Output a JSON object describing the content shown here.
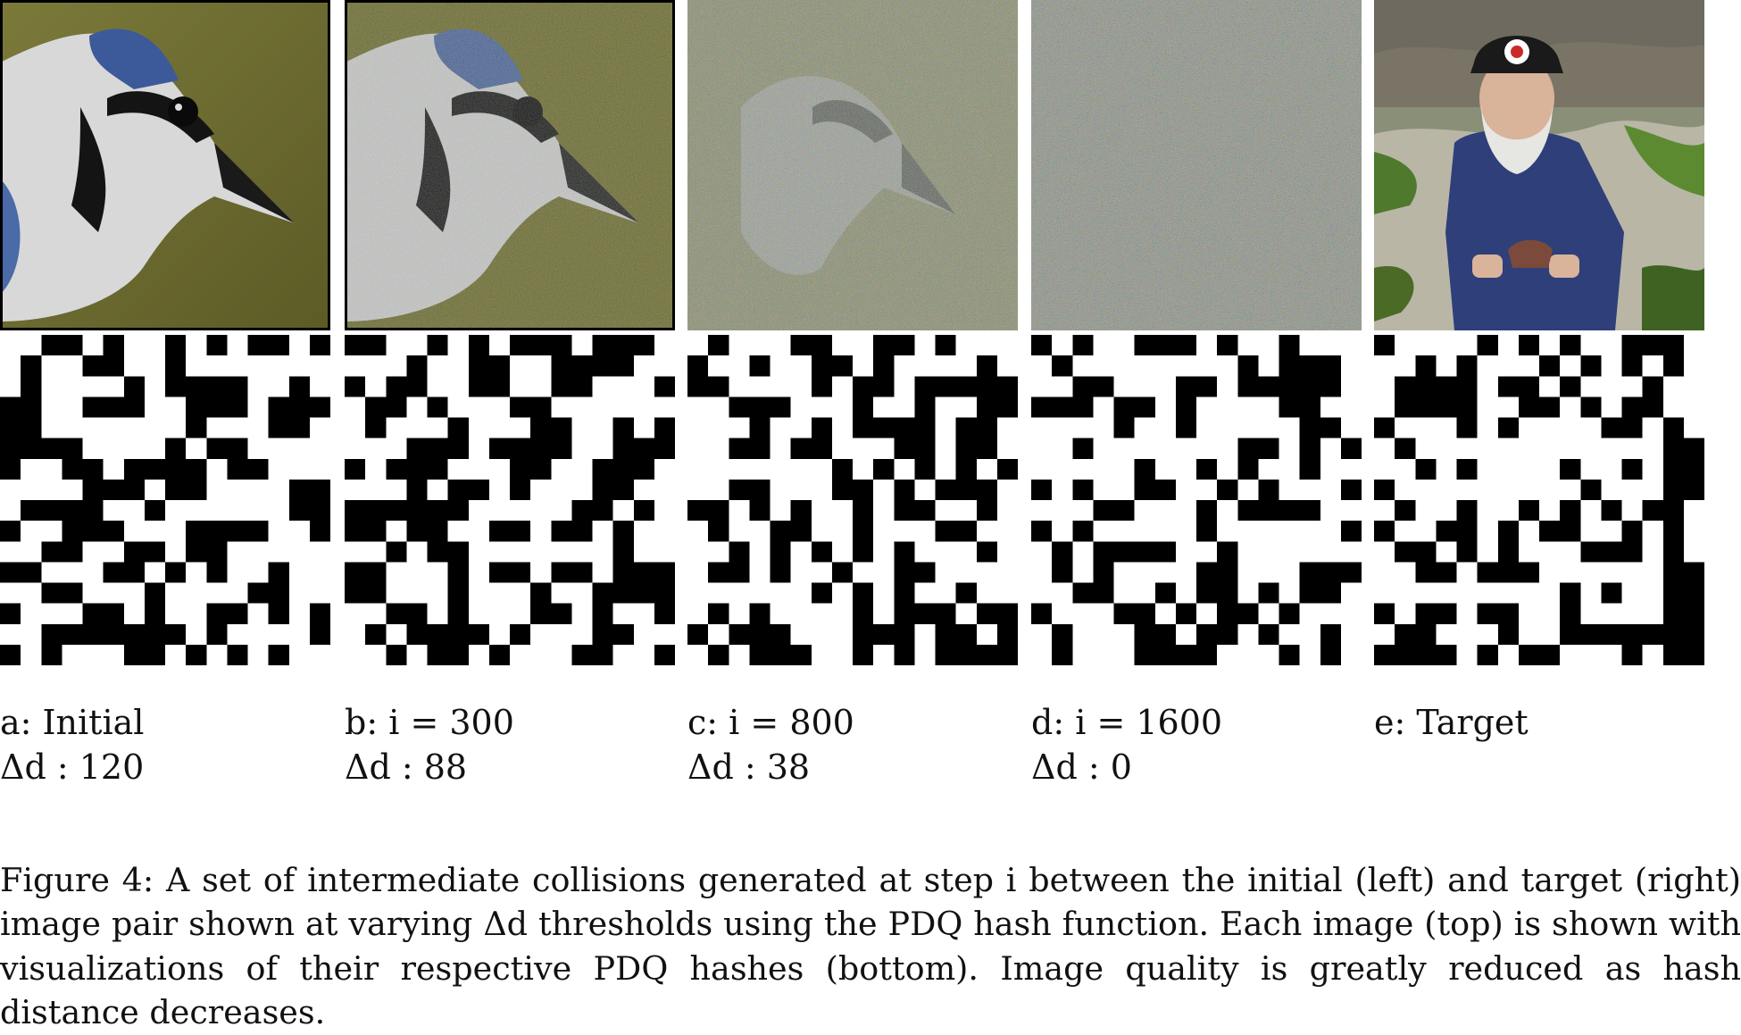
{
  "figure": {
    "panels": [
      {
        "id": "a",
        "title": "a: Initial",
        "delta_label": "Δd : 120",
        "delta": "120",
        "iteration": null,
        "image_subject": "bird"
      },
      {
        "id": "b",
        "title": "b: i = 300",
        "delta_label": "Δd : 88",
        "delta": "88",
        "iteration": 300,
        "image_subject": "bird-noisy-1"
      },
      {
        "id": "c",
        "title": "c: i = 800",
        "delta_label": "Δd : 38",
        "delta": "38",
        "iteration": 800,
        "image_subject": "bird-noisy-2"
      },
      {
        "id": "d",
        "title": "d: i = 1600",
        "delta_label": "Δd : 0",
        "delta": "0",
        "iteration": 1600,
        "image_subject": "noise"
      },
      {
        "id": "e",
        "title": "e: Target",
        "delta_label": "",
        "delta": null,
        "iteration": null,
        "image_subject": "fisherman"
      }
    ],
    "caption": "Figure 4: A set of intermediate collisions generated at step i between the initial (left) and target (right) image pair shown at varying Δd thresholds using the PDQ hash function. Each image (top) is shown with visualizations of their respective PDQ hashes (bottom). Image quality is greatly reduced as hash distance decreases."
  },
  "colors": {
    "hash_black": "#000000",
    "hash_white": "#ffffff",
    "bird_background": "#6b6a2e",
    "noise_gray": "#8c8a86",
    "fisherman_jacket": "#2e3f7a"
  }
}
